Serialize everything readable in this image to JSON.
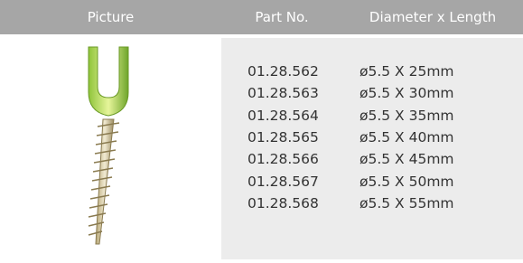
{
  "table": {
    "header": [
      "Picture",
      "Part No.",
      "Diameter x Length"
    ],
    "rows": [
      [
        "01.28.562",
        "ø5.5 X 25mm"
      ],
      [
        "01.28.563",
        "ø5.5 X 30mm"
      ],
      [
        "01.28.564",
        "ø5.5 X 35mm"
      ],
      [
        "01.28.565",
        "ø5.5 X 40mm"
      ],
      [
        "01.28.566",
        "ø5.5 X 45mm"
      ],
      [
        "01.28.567",
        "ø5.5 X 50mm"
      ],
      [
        "01.28.568",
        "ø5.5 X 55mm"
      ]
    ]
  }
}
